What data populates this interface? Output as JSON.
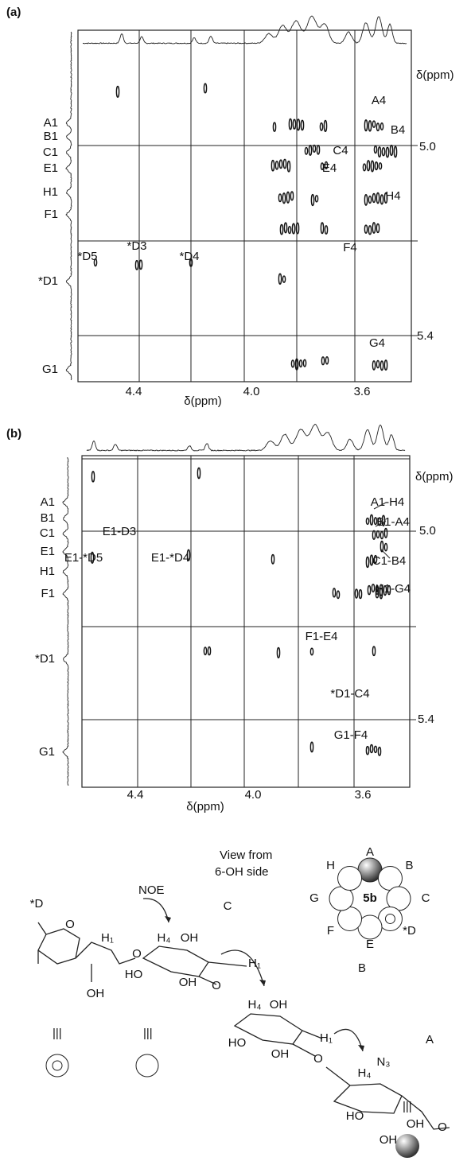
{
  "panel_a": {
    "label": "(a)",
    "x_axis_label": "δ(ppm)",
    "y_axis_label": "δ(ppm)",
    "x_ticks": [
      "4.4",
      "4.0",
      "3.6"
    ],
    "y_ticks": [
      "5.0",
      "5.4"
    ],
    "row_labels": [
      "A1",
      "B1",
      "C1",
      "E1",
      "H1",
      "F1",
      "*D1",
      "G1"
    ],
    "peak_labels": [
      "A4",
      "B4",
      "C4",
      "E4",
      "H4",
      "F4",
      "*D5",
      "*D3",
      "*D4",
      "G4"
    ]
  },
  "panel_b": {
    "label": "(b)",
    "x_axis_label": "δ(ppm)",
    "y_axis_label": "δ(ppm)",
    "x_ticks": [
      "4.4",
      "4.0",
      "3.6"
    ],
    "y_ticks": [
      "5.0",
      "5.4"
    ],
    "row_labels": [
      "A1",
      "B1",
      "C1",
      "E1",
      "H1",
      "F1",
      "*D1",
      "G1"
    ],
    "peak_labels": [
      "A1-H4",
      "B1-A4",
      "E1-D3",
      "C1-B4",
      "E1-*D5",
      "E1-*D4",
      "H1-G4",
      "F1-E4",
      "*D1-C4",
      "G1-F4"
    ]
  },
  "scheme": {
    "view_note": [
      "View from",
      "6-OH side"
    ],
    "compound": "5b",
    "ring_labels": [
      "A",
      "B",
      "C",
      "*D",
      "E",
      "F",
      "G",
      "H"
    ],
    "residue_labels": [
      "*D",
      "C",
      "B",
      "A"
    ],
    "noe_label": "NOE",
    "atom_labels": [
      "O",
      "H₁",
      "OH",
      "O",
      "H₄",
      "OH",
      "HO",
      "OH",
      "H₁",
      "O",
      "H₄",
      "OH",
      "HO",
      "OH",
      "H₁",
      "O",
      "H₄",
      "N₃",
      "HO",
      "OH",
      "OH",
      "O"
    ]
  }
}
